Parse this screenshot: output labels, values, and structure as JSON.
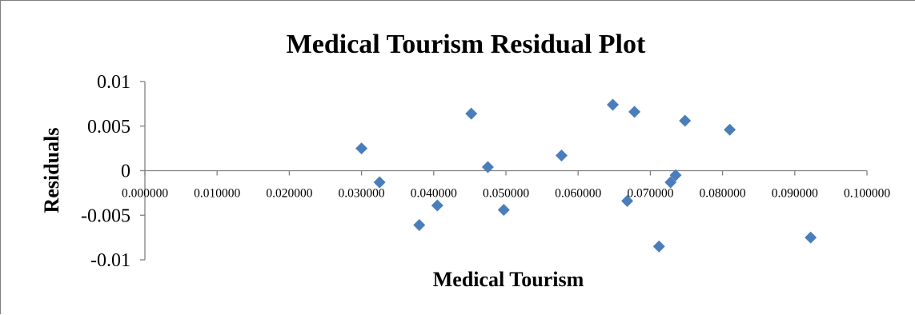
{
  "chart_data": {
    "type": "scatter",
    "title": "Medical Tourism Residual Plot",
    "xlabel": "Medical Tourism",
    "ylabel": "Residuals",
    "xlim": [
      0,
      0.1
    ],
    "ylim": [
      -0.01,
      0.01
    ],
    "x_ticks": [
      0,
      0.01,
      0.02,
      0.03,
      0.04,
      0.05,
      0.06,
      0.07,
      0.08,
      0.09,
      0.1
    ],
    "x_tick_labels": [
      "0.000000",
      "0.010000",
      "0.020000",
      "0.030000",
      "0.040000",
      "0.050000",
      "0.060000",
      "0.070000",
      "0.080000",
      "0.090000",
      "0.100000"
    ],
    "y_ticks": [
      0.01,
      0.005,
      0,
      -0.005,
      -0.01
    ],
    "y_tick_labels": [
      "0.01",
      "0.005",
      "0",
      "-0.005",
      "-0.01"
    ],
    "grid": false,
    "marker": "diamond",
    "color": "#4a7ebb",
    "points": [
      {
        "x": 0.03,
        "y": 0.0025
      },
      {
        "x": 0.0325,
        "y": -0.0013
      },
      {
        "x": 0.038,
        "y": -0.0061
      },
      {
        "x": 0.0405,
        "y": -0.0039
      },
      {
        "x": 0.0452,
        "y": 0.0064
      },
      {
        "x": 0.0475,
        "y": 0.0004
      },
      {
        "x": 0.0497,
        "y": -0.0044
      },
      {
        "x": 0.0577,
        "y": 0.0017
      },
      {
        "x": 0.0648,
        "y": 0.0074
      },
      {
        "x": 0.0668,
        "y": -0.0034
      },
      {
        "x": 0.0678,
        "y": 0.0066
      },
      {
        "x": 0.0712,
        "y": -0.0085
      },
      {
        "x": 0.0728,
        "y": -0.0013
      },
      {
        "x": 0.0735,
        "y": -0.0005
      },
      {
        "x": 0.0748,
        "y": 0.0056
      },
      {
        "x": 0.081,
        "y": 0.0046
      },
      {
        "x": 0.0922,
        "y": -0.0075
      }
    ]
  }
}
